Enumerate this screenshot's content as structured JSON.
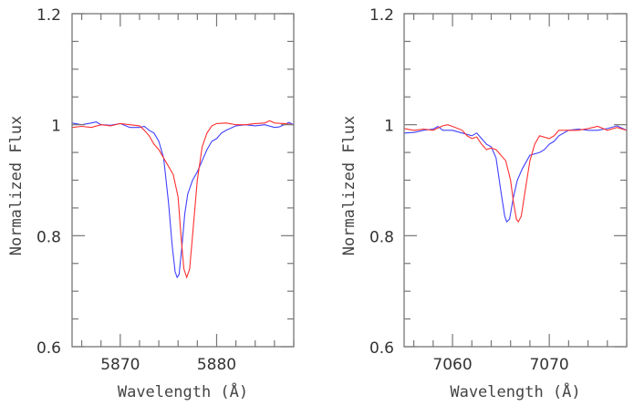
{
  "chart_data": [
    {
      "type": "line",
      "xlabel": "Wavelength (Å)",
      "ylabel": "Normalized Flux",
      "xlim": [
        5865,
        5888
      ],
      "ylim": [
        0.6,
        1.2
      ],
      "xticks": [
        5870,
        5880
      ],
      "xtick_labels": [
        "5870",
        "5880"
      ],
      "yticks": [
        0.6,
        0.8,
        1.0,
        1.2
      ],
      "ytick_labels": [
        "0.6",
        "0.8",
        "1",
        "1.2"
      ],
      "grid": false,
      "series": [
        {
          "color": "#4040ff",
          "x": [
            5865,
            5866,
            5867,
            5867.5,
            5868,
            5869,
            5870,
            5871,
            5872,
            5872.5,
            5873,
            5873.5,
            5874,
            5874.5,
            5875,
            5875.4,
            5875.7,
            5875.9,
            5876.1,
            5876.4,
            5876.7,
            5877,
            5877.5,
            5878,
            5878.5,
            5879,
            5879.5,
            5880,
            5880.5,
            5881,
            5882,
            5883,
            5884,
            5885,
            5886,
            5886.5,
            5887,
            5887.5,
            5888
          ],
          "y": [
            1.003,
            1.0,
            1.003,
            1.005,
            1.0,
            0.999,
            1.002,
            0.995,
            0.995,
            0.997,
            0.99,
            0.985,
            0.97,
            0.94,
            0.86,
            0.78,
            0.735,
            0.725,
            0.73,
            0.78,
            0.84,
            0.875,
            0.9,
            0.915,
            0.935,
            0.955,
            0.97,
            0.975,
            0.985,
            0.99,
            0.998,
            1.0,
            0.998,
            1.0,
            0.995,
            0.996,
            1.0,
            1.004,
            1.0
          ]
        },
        {
          "color": "#ff3030",
          "x": [
            5865,
            5866,
            5867,
            5868,
            5869,
            5870,
            5871,
            5872,
            5872.5,
            5873,
            5873.5,
            5874,
            5874.5,
            5875,
            5875.5,
            5876,
            5876.3,
            5876.6,
            5876.9,
            5877.2,
            5877.6,
            5878,
            5878.5,
            5879,
            5879.5,
            5880,
            5881,
            5882,
            5883,
            5884,
            5885,
            5885.5,
            5886,
            5887,
            5888
          ],
          "y": [
            0.995,
            0.997,
            0.995,
            1.0,
            0.998,
            1.002,
            1.0,
            0.998,
            0.99,
            0.98,
            0.965,
            0.955,
            0.94,
            0.925,
            0.91,
            0.87,
            0.8,
            0.74,
            0.725,
            0.74,
            0.82,
            0.9,
            0.96,
            0.985,
            0.998,
            1.002,
            1.003,
            1.0,
            1.0,
            1.002,
            1.003,
            1.007,
            1.003,
            1.002,
            1.0
          ]
        }
      ]
    },
    {
      "type": "line",
      "xlabel": "Wavelength (Å)",
      "ylabel": "Normalized Flux",
      "xlim": [
        7055,
        7078
      ],
      "ylim": [
        0.6,
        1.2
      ],
      "xticks": [
        7060,
        7070
      ],
      "xtick_labels": [
        "7060",
        "7070"
      ],
      "yticks": [
        0.6,
        0.8,
        1.0,
        1.2
      ],
      "ytick_labels": [
        "0.6",
        "0.8",
        "1",
        "1.2"
      ],
      "grid": false,
      "series": [
        {
          "color": "#4040ff",
          "x": [
            7055,
            7056,
            7057,
            7058,
            7058.5,
            7059,
            7060,
            7061,
            7062,
            7062.5,
            7063,
            7063.5,
            7064,
            7064.5,
            7065,
            7065.4,
            7065.6,
            7065.9,
            7066.3,
            7066.7,
            7067.2,
            7068,
            7069,
            7069.5,
            7070,
            7070.5,
            7071,
            7072,
            7073,
            7074,
            7075,
            7076,
            7077,
            7078
          ],
          "y": [
            0.985,
            0.986,
            0.99,
            0.992,
            0.997,
            0.99,
            0.99,
            0.985,
            0.98,
            0.985,
            0.975,
            0.965,
            0.96,
            0.94,
            0.88,
            0.835,
            0.825,
            0.83,
            0.87,
            0.9,
            0.92,
            0.945,
            0.95,
            0.955,
            0.965,
            0.97,
            0.98,
            0.99,
            0.992,
            0.99,
            0.99,
            0.993,
            0.998,
            0.99
          ]
        },
        {
          "color": "#ff3030",
          "x": [
            7055,
            7056,
            7057,
            7058,
            7059,
            7059.5,
            7060,
            7061,
            7061.5,
            7062,
            7062.5,
            7063,
            7063.5,
            7064,
            7064.5,
            7065,
            7065.5,
            7066,
            7066.3,
            7066.6,
            7066.8,
            7067.1,
            7067.5,
            7068,
            7068.5,
            7069,
            7070,
            7070.5,
            7071,
            7072,
            7073,
            7074,
            7075,
            7076,
            7077,
            7078
          ],
          "y": [
            0.993,
            0.99,
            0.992,
            0.99,
            0.998,
            1.0,
            0.997,
            0.99,
            0.98,
            0.975,
            0.978,
            0.965,
            0.955,
            0.958,
            0.955,
            0.945,
            0.935,
            0.9,
            0.86,
            0.83,
            0.825,
            0.835,
            0.88,
            0.935,
            0.965,
            0.98,
            0.975,
            0.98,
            0.99,
            0.99,
            0.99,
            0.993,
            0.997,
            0.99,
            0.995,
            0.99
          ]
        }
      ]
    }
  ]
}
